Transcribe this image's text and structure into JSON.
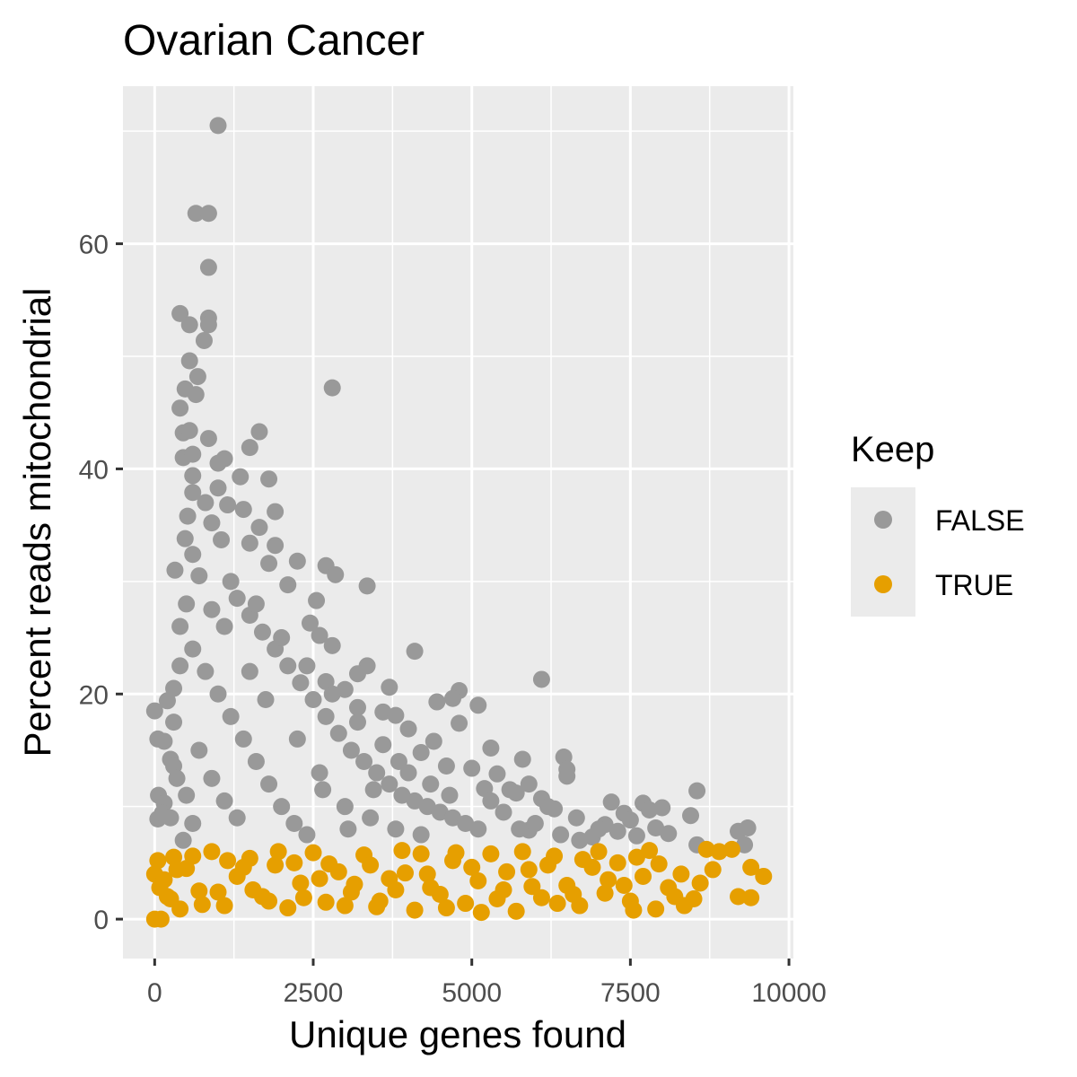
{
  "chart_data": {
    "type": "scatter",
    "title": "Ovarian Cancer",
    "xlabel": "Unique genes found",
    "ylabel": "Percent reads mitochondrial",
    "xlim": [
      -500,
      10070
    ],
    "ylim": [
      -3.5,
      74
    ],
    "x_ticks": [
      0,
      2500,
      5000,
      7500,
      10000
    ],
    "x_tick_labels": [
      "0",
      "2500",
      "5000",
      "7500",
      "10000"
    ],
    "y_ticks": [
      0,
      20,
      40,
      60
    ],
    "y_tick_labels": [
      "0",
      "20",
      "40",
      "60"
    ],
    "grid": true,
    "legend": {
      "title": "Keep",
      "placement": "right",
      "entries": [
        {
          "label": "FALSE",
          "color": "#999999"
        },
        {
          "label": "TRUE",
          "color": "#E69F00"
        }
      ]
    },
    "series": [
      {
        "name": "FALSE",
        "color": "#999999",
        "points": [
          [
            1000,
            70.5
          ],
          [
            650,
            62.7
          ],
          [
            850,
            62.7
          ],
          [
            850,
            57.9
          ],
          [
            400,
            53.8
          ],
          [
            850,
            53.4
          ],
          [
            550,
            52.8
          ],
          [
            850,
            52.8
          ],
          [
            780,
            51.4
          ],
          [
            550,
            49.6
          ],
          [
            680,
            48.2
          ],
          [
            650,
            46.6
          ],
          [
            480,
            47.1
          ],
          [
            2800,
            47.2
          ],
          [
            400,
            45.4
          ],
          [
            450,
            43.2
          ],
          [
            550,
            43.4
          ],
          [
            850,
            42.7
          ],
          [
            1650,
            43.3
          ],
          [
            1500,
            41.9
          ],
          [
            450,
            41.0
          ],
          [
            600,
            41.3
          ],
          [
            1100,
            40.9
          ],
          [
            1000,
            40.5
          ],
          [
            600,
            39.4
          ],
          [
            1350,
            39.3
          ],
          [
            1800,
            39.1
          ],
          [
            1000,
            38.3
          ],
          [
            600,
            37.9
          ],
          [
            800,
            37.0
          ],
          [
            1150,
            36.8
          ],
          [
            1400,
            36.4
          ],
          [
            1900,
            36.2
          ],
          [
            520,
            35.8
          ],
          [
            900,
            35.2
          ],
          [
            1650,
            34.8
          ],
          [
            1050,
            33.7
          ],
          [
            480,
            33.8
          ],
          [
            1500,
            33.4
          ],
          [
            1900,
            33.2
          ],
          [
            600,
            32.4
          ],
          [
            1800,
            31.6
          ],
          [
            320,
            31.0
          ],
          [
            2250,
            31.8
          ],
          [
            2700,
            31.4
          ],
          [
            2850,
            30.6
          ],
          [
            3350,
            29.6
          ],
          [
            2100,
            29.7
          ],
          [
            2550,
            28.3
          ],
          [
            2450,
            26.3
          ],
          [
            2600,
            25.2
          ],
          [
            2800,
            24.3
          ],
          [
            4100,
            23.8
          ],
          [
            3350,
            22.5
          ],
          [
            3200,
            21.8
          ],
          [
            6100,
            21.3
          ],
          [
            2700,
            21.1
          ],
          [
            3000,
            20.4
          ],
          [
            3700,
            20.6
          ],
          [
            4800,
            20.3
          ],
          [
            4700,
            19.6
          ],
          [
            4450,
            19.3
          ],
          [
            5100,
            19.0
          ],
          [
            3200,
            18.8
          ],
          [
            3600,
            18.4
          ],
          [
            3800,
            18.1
          ],
          [
            4800,
            17.4
          ],
          [
            4000,
            16.9
          ],
          [
            4400,
            15.8
          ],
          [
            5300,
            15.2
          ],
          [
            4200,
            14.8
          ],
          [
            6450,
            14.4
          ],
          [
            5800,
            14.2
          ],
          [
            4600,
            13.6
          ],
          [
            6500,
            13.3
          ],
          [
            5000,
            13.4
          ],
          [
            5400,
            12.9
          ],
          [
            6500,
            12.7
          ],
          [
            5900,
            12.0
          ],
          [
            5200,
            11.6
          ],
          [
            8550,
            11.4
          ],
          [
            5700,
            11.2
          ],
          [
            6100,
            10.7
          ],
          [
            7200,
            10.4
          ],
          [
            7700,
            10.3
          ],
          [
            7800,
            9.7
          ],
          [
            8000,
            9.9
          ],
          [
            7400,
            9.4
          ],
          [
            6300,
            9.8
          ],
          [
            8450,
            9.2
          ],
          [
            7100,
            8.4
          ],
          [
            7500,
            8.8
          ],
          [
            7300,
            7.8
          ],
          [
            7900,
            8.1
          ],
          [
            7600,
            7.4
          ],
          [
            8100,
            7.6
          ],
          [
            9200,
            7.8
          ],
          [
            9350,
            8.1
          ],
          [
            8550,
            6.6
          ],
          [
            9300,
            6.6
          ],
          [
            6900,
            7.3
          ],
          [
            5900,
            7.9
          ],
          [
            0,
            18.5
          ],
          [
            50,
            16.0
          ],
          [
            150,
            15.8
          ],
          [
            250,
            14.2
          ],
          [
            300,
            13.6
          ],
          [
            60,
            11.0
          ],
          [
            150,
            10.3
          ],
          [
            50,
            8.9
          ],
          [
            120,
            9.4
          ],
          [
            400,
            22.5
          ],
          [
            200,
            19.4
          ],
          [
            300,
            17.5
          ],
          [
            500,
            28.0
          ],
          [
            700,
            30.5
          ],
          [
            900,
            27.5
          ],
          [
            1100,
            26.0
          ],
          [
            1300,
            28.5
          ],
          [
            1500,
            27.0
          ],
          [
            1700,
            25.5
          ],
          [
            1900,
            24.0
          ],
          [
            2100,
            22.5
          ],
          [
            2300,
            21.0
          ],
          [
            2500,
            19.5
          ],
          [
            2700,
            18.0
          ],
          [
            2900,
            16.5
          ],
          [
            3100,
            15.0
          ],
          [
            3300,
            14.0
          ],
          [
            3500,
            13.0
          ],
          [
            3700,
            12.0
          ],
          [
            3900,
            11.0
          ],
          [
            4100,
            10.5
          ],
          [
            4300,
            10.0
          ],
          [
            4500,
            9.5
          ],
          [
            4700,
            9.0
          ],
          [
            4900,
            8.5
          ],
          [
            5100,
            8.0
          ],
          [
            600,
            24.0
          ],
          [
            800,
            22.0
          ],
          [
            1000,
            20.0
          ],
          [
            1200,
            18.0
          ],
          [
            1400,
            16.0
          ],
          [
            1600,
            14.0
          ],
          [
            1800,
            12.0
          ],
          [
            2000,
            10.0
          ],
          [
            2200,
            8.5
          ],
          [
            2400,
            7.5
          ],
          [
            700,
            15.0
          ],
          [
            900,
            12.5
          ],
          [
            1100,
            10.5
          ],
          [
            1300,
            9.0
          ],
          [
            500,
            11.0
          ],
          [
            600,
            8.5
          ],
          [
            2600,
            13.0
          ],
          [
            3000,
            10.0
          ],
          [
            3400,
            9.0
          ],
          [
            3800,
            8.0
          ],
          [
            4200,
            7.5
          ],
          [
            5500,
            9.5
          ],
          [
            6000,
            8.5
          ],
          [
            6400,
            7.5
          ],
          [
            6700,
            7.0
          ],
          [
            5600,
            11.5
          ],
          [
            4000,
            13.0
          ],
          [
            3600,
            15.5
          ],
          [
            3200,
            17.5
          ],
          [
            2800,
            20.0
          ],
          [
            2400,
            22.5
          ],
          [
            2000,
            25.0
          ],
          [
            1600,
            28.0
          ],
          [
            1200,
            30.0
          ],
          [
            400,
            26.0
          ],
          [
            300,
            20.5
          ],
          [
            350,
            12.5
          ],
          [
            250,
            9.0
          ],
          [
            450,
            7.0
          ],
          [
            1500,
            22.0
          ],
          [
            1750,
            19.5
          ],
          [
            2250,
            16.0
          ],
          [
            2650,
            11.5
          ],
          [
            3050,
            8.0
          ],
          [
            3450,
            11.5
          ],
          [
            3850,
            14.0
          ],
          [
            4350,
            12.0
          ],
          [
            4650,
            11.0
          ],
          [
            5300,
            10.5
          ],
          [
            5750,
            8.0
          ],
          [
            6200,
            10.0
          ],
          [
            6650,
            9.0
          ],
          [
            7000,
            8.0
          ]
        ]
      },
      {
        "name": "TRUE",
        "color": "#E69F00",
        "points": [
          [
            0,
            0.0
          ],
          [
            100,
            0.0
          ],
          [
            400,
            0.9
          ],
          [
            0,
            4.0
          ],
          [
            50,
            5.2
          ],
          [
            80,
            2.8
          ],
          [
            150,
            3.5
          ],
          [
            250,
            1.8
          ],
          [
            300,
            5.5
          ],
          [
            500,
            4.5
          ],
          [
            700,
            2.5
          ],
          [
            900,
            6.0
          ],
          [
            1100,
            1.2
          ],
          [
            1300,
            3.8
          ],
          [
            1500,
            5.4
          ],
          [
            1700,
            2.0
          ],
          [
            1900,
            4.8
          ],
          [
            2100,
            1.0
          ],
          [
            2300,
            3.2
          ],
          [
            2500,
            5.9
          ],
          [
            2700,
            1.5
          ],
          [
            2900,
            4.2
          ],
          [
            3100,
            2.4
          ],
          [
            3300,
            5.7
          ],
          [
            3500,
            1.1
          ],
          [
            3700,
            3.6
          ],
          [
            3900,
            6.1
          ],
          [
            4100,
            0.8
          ],
          [
            4300,
            4.0
          ],
          [
            4500,
            2.2
          ],
          [
            4700,
            5.2
          ],
          [
            4900,
            1.4
          ],
          [
            5100,
            3.4
          ],
          [
            5300,
            5.8
          ],
          [
            5500,
            2.6
          ],
          [
            5700,
            0.7
          ],
          [
            5900,
            4.4
          ],
          [
            6100,
            1.9
          ],
          [
            6300,
            5.6
          ],
          [
            6500,
            3.0
          ],
          [
            6700,
            1.2
          ],
          [
            6900,
            4.6
          ],
          [
            7100,
            2.3
          ],
          [
            7300,
            5.0
          ],
          [
            7500,
            1.6
          ],
          [
            7700,
            3.8
          ],
          [
            7900,
            0.9
          ],
          [
            8100,
            2.8
          ],
          [
            8300,
            4.0
          ],
          [
            8500,
            1.8
          ],
          [
            8700,
            6.2
          ],
          [
            8900,
            6.0
          ],
          [
            9100,
            6.2
          ],
          [
            9200,
            2.0
          ],
          [
            9400,
            4.6
          ],
          [
            9400,
            1.9
          ],
          [
            9600,
            3.8
          ],
          [
            8800,
            4.4
          ],
          [
            8600,
            3.2
          ],
          [
            8200,
            2.0
          ],
          [
            7800,
            6.1
          ],
          [
            7600,
            5.5
          ],
          [
            7400,
            3.0
          ],
          [
            7000,
            6.0
          ],
          [
            6600,
            2.2
          ],
          [
            6200,
            4.8
          ],
          [
            5800,
            6.0
          ],
          [
            5400,
            1.8
          ],
          [
            5000,
            4.6
          ],
          [
            4600,
            1.0
          ],
          [
            4200,
            5.8
          ],
          [
            3800,
            2.6
          ],
          [
            3400,
            4.8
          ],
          [
            3000,
            1.2
          ],
          [
            2600,
            3.6
          ],
          [
            2200,
            5.0
          ],
          [
            1800,
            1.6
          ],
          [
            1400,
            4.6
          ],
          [
            1000,
            2.4
          ],
          [
            600,
            5.6
          ],
          [
            200,
            2.0
          ],
          [
            350,
            4.4
          ],
          [
            750,
            1.3
          ],
          [
            1150,
            5.2
          ],
          [
            1550,
            2.6
          ],
          [
            1950,
            6.0
          ],
          [
            2350,
            1.9
          ],
          [
            2750,
            4.9
          ],
          [
            3150,
            3.1
          ],
          [
            3550,
            1.6
          ],
          [
            3950,
            4.1
          ],
          [
            4350,
            2.8
          ],
          [
            4750,
            5.9
          ],
          [
            5150,
            0.6
          ],
          [
            5550,
            4.2
          ],
          [
            5950,
            2.9
          ],
          [
            6350,
            1.4
          ],
          [
            6750,
            5.3
          ],
          [
            7150,
            3.5
          ],
          [
            7550,
            0.8
          ],
          [
            7950,
            4.9
          ],
          [
            8350,
            1.2
          ]
        ]
      }
    ]
  }
}
